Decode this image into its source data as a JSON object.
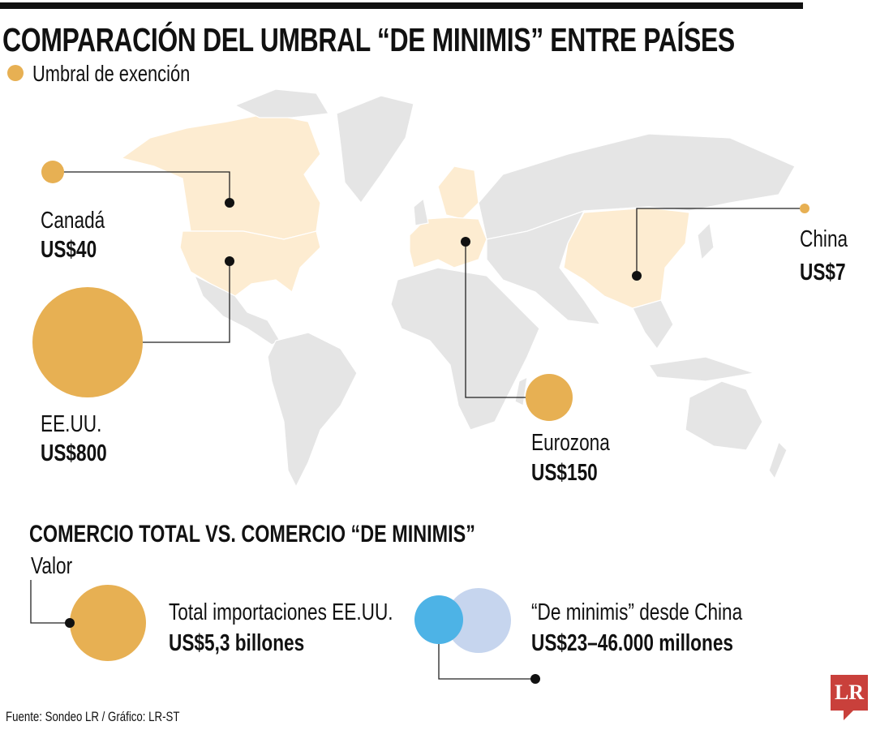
{
  "title": "COMPARACIÓN DEL UMBRAL “DE MINIMIS” ENTRE PAÍSES",
  "legend": {
    "label": "Umbral de exención",
    "color": "#e7b053"
  },
  "colors": {
    "highlight": "#fdecd1",
    "land": "#e5e5e5",
    "bubble": "#e7b053",
    "blue": "#4db3e6",
    "light_blue": "#c6d5ee",
    "logo": "#c9403b"
  },
  "countries": [
    {
      "name": "Canadá",
      "value": "US$40",
      "amount": 40
    },
    {
      "name": "EE.UU.",
      "value": "US$800",
      "amount": 800
    },
    {
      "name": "Eurozona",
      "value": "US$150",
      "amount": 150
    },
    {
      "name": "China",
      "value": "US$7",
      "amount": 7
    }
  ],
  "comparison": {
    "title": "COMERCIO TOTAL VS. COMERCIO “DE MINIMIS”",
    "axis_label": "Valor",
    "items": [
      {
        "label": "Total importaciones EE.UU.",
        "value": "US$5,3 billones"
      },
      {
        "label": "“De minimis” desde China",
        "value": "US$23–46.000 millones"
      }
    ]
  },
  "footer": "Fuente: Sondeo LR / Gráfico: LR-ST",
  "logo": "LR"
}
